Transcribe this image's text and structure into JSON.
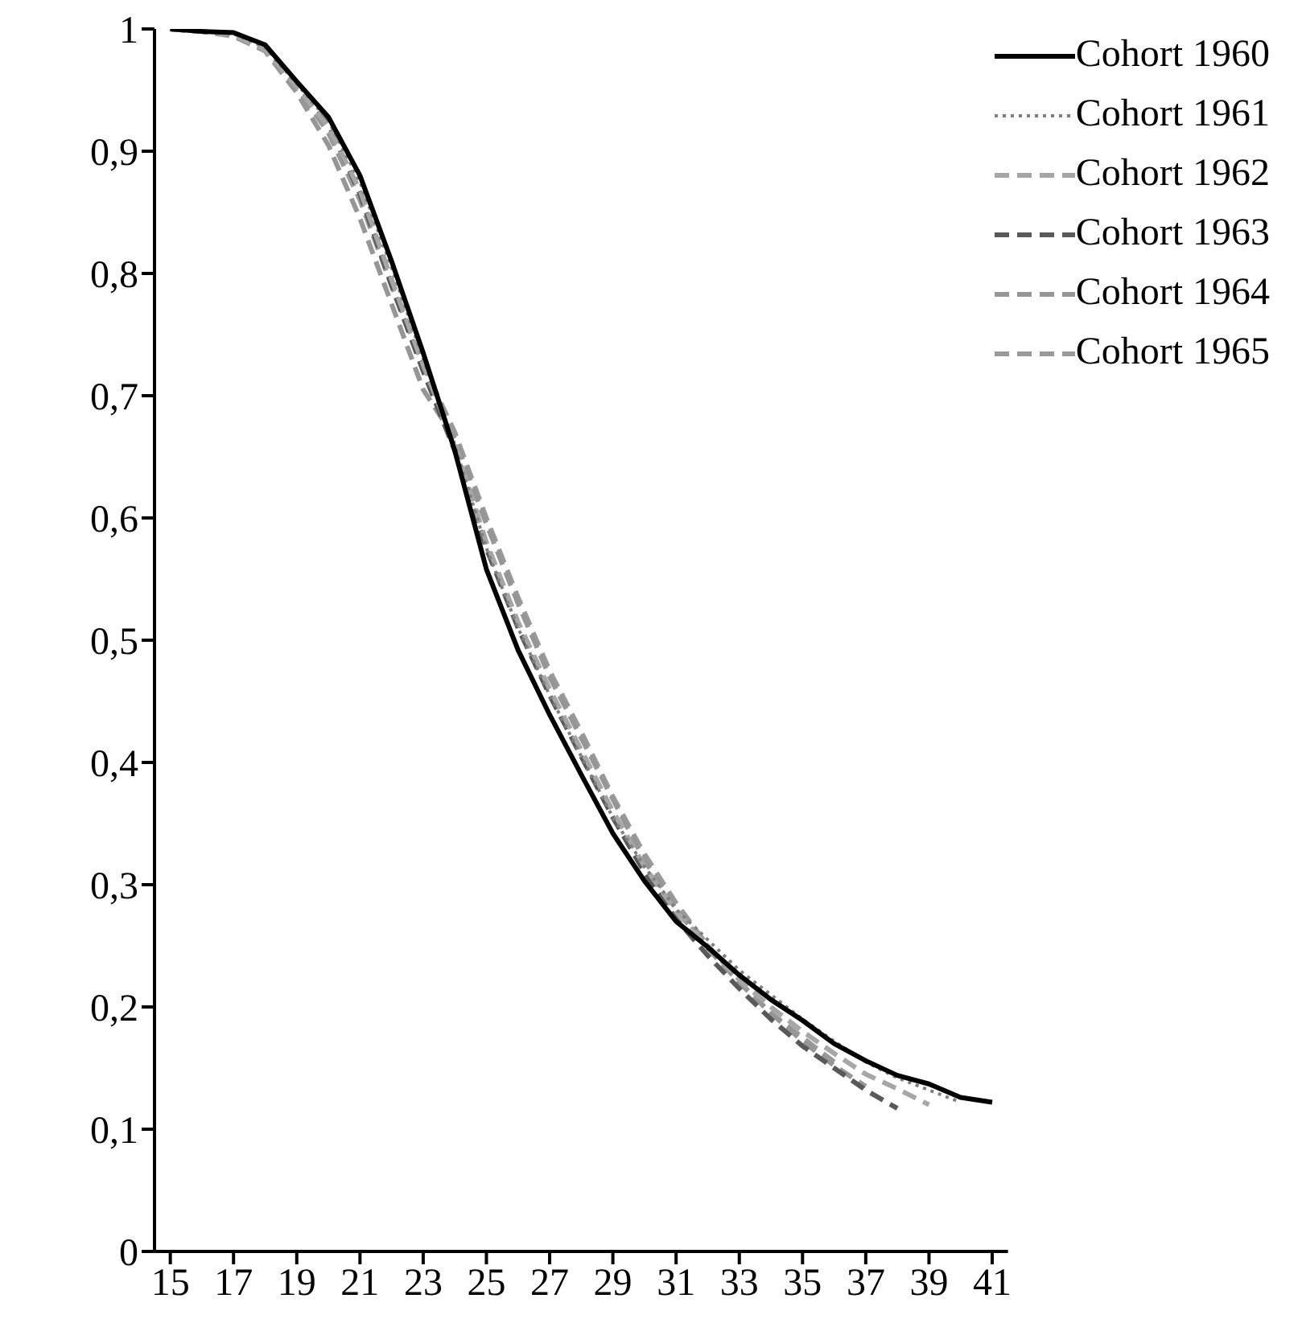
{
  "chart_data": {
    "type": "line",
    "x": [
      15,
      16,
      17,
      18,
      19,
      20,
      21,
      22,
      23,
      24,
      25,
      26,
      27,
      28,
      29,
      30,
      31,
      32,
      33,
      34,
      35,
      36,
      37,
      38,
      39,
      40,
      41
    ],
    "series": [
      {
        "name": "Cohort 1960",
        "color": "#000000",
        "line_style": "solid",
        "values": [
          1,
          0.998,
          0.997,
          0.987,
          0.957,
          0.928,
          0.88,
          0.81,
          0.735,
          0.655,
          0.558,
          0.492,
          0.439,
          0.39,
          0.342,
          0.303,
          0.27,
          0.249,
          0.226,
          0.206,
          0.189,
          0.17,
          0.156,
          0.144,
          0.137,
          0.126,
          0.122
        ]
      },
      {
        "name": "Cohort 1961",
        "color": "#7f7f7f",
        "line_style": "dotted",
        "values": [
          1,
          0.998,
          0.996,
          0.985,
          0.955,
          0.925,
          0.875,
          0.805,
          0.73,
          0.66,
          0.575,
          0.51,
          0.455,
          0.405,
          0.355,
          0.315,
          0.28,
          0.255,
          0.23,
          0.21,
          0.19,
          0.172,
          0.155,
          0.142,
          0.132,
          0.122,
          null
        ]
      },
      {
        "name": "Cohort 1962",
        "color": "#a6a6a6",
        "line_style": "dashed",
        "values": [
          1,
          0.998,
          0.995,
          0.983,
          0.953,
          0.92,
          0.868,
          0.795,
          0.725,
          0.66,
          0.58,
          0.515,
          0.46,
          0.41,
          0.36,
          0.315,
          0.278,
          0.25,
          0.222,
          0.2,
          0.18,
          0.162,
          0.145,
          0.133,
          0.12,
          null,
          null
        ]
      },
      {
        "name": "Cohort 1963",
        "color": "#595959",
        "line_style": "dashed",
        "values": [
          1,
          0.998,
          0.995,
          0.984,
          0.955,
          0.922,
          0.865,
          0.79,
          0.72,
          0.655,
          0.575,
          0.51,
          0.455,
          0.405,
          0.355,
          0.31,
          0.272,
          0.242,
          0.215,
          0.19,
          0.168,
          0.15,
          0.132,
          0.117,
          null,
          null,
          null
        ]
      },
      {
        "name": "Cohort 1964",
        "color": "#969696",
        "line_style": "dashed",
        "values": [
          1,
          0.998,
          0.994,
          0.982,
          0.948,
          0.905,
          0.845,
          0.775,
          0.705,
          0.665,
          0.595,
          0.53,
          0.47,
          0.42,
          0.37,
          0.32,
          0.28,
          0.248,
          0.22,
          0.195,
          0.172,
          0.152,
          0.135,
          null,
          null,
          null,
          null
        ]
      },
      {
        "name": "Cohort 1965",
        "color": "#999999",
        "line_style": "dashed",
        "values": [
          1,
          0.998,
          0.995,
          0.983,
          0.952,
          0.915,
          0.86,
          0.79,
          0.725,
          0.67,
          0.6,
          0.535,
          0.475,
          0.425,
          0.372,
          0.325,
          0.285,
          0.25,
          0.22,
          0.195,
          0.175,
          0.155,
          null,
          null,
          null,
          null,
          null
        ]
      }
    ],
    "xlim": [
      14.5,
      41.5
    ],
    "xticks": [
      15,
      17,
      19,
      21,
      23,
      25,
      27,
      29,
      31,
      33,
      35,
      37,
      39,
      41
    ],
    "ylim": [
      0,
      1
    ],
    "yticks": [
      {
        "value": 0,
        "label": "0"
      },
      {
        "value": 0.1,
        "label": "0,1"
      },
      {
        "value": 0.2,
        "label": "0,2"
      },
      {
        "value": 0.3,
        "label": "0,3"
      },
      {
        "value": 0.4,
        "label": "0,4"
      },
      {
        "value": 0.5,
        "label": "0,5"
      },
      {
        "value": 0.6,
        "label": "0,6"
      },
      {
        "value": 0.7,
        "label": "0,7"
      },
      {
        "value": 0.8,
        "label": "0,8"
      },
      {
        "value": 0.9,
        "label": "0,9"
      },
      {
        "value": 1,
        "label": "1"
      }
    ],
    "grid": false,
    "legend": "top right",
    "marker": "none"
  }
}
